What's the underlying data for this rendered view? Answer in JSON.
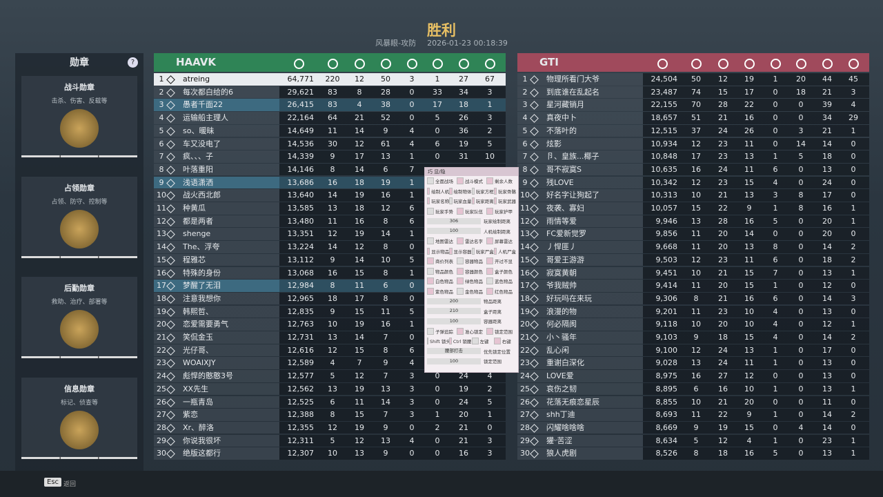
{
  "header": {
    "title": "胜利",
    "subtitle": "风暴眼-攻防",
    "timestamp": "2026-01-23 00:18:39"
  },
  "medals": {
    "title": "勋章",
    "help": "?",
    "items": [
      {
        "name": "战斗勋章",
        "desc": "击杀、伤害、反载等"
      },
      {
        "name": "占领勋章",
        "desc": "占领、防守、控制等"
      },
      {
        "name": "后勤勋章",
        "desc": "救助、治疗、部署等"
      },
      {
        "name": "信息勋章",
        "desc": "标记、侦查等"
      }
    ]
  },
  "teams": [
    {
      "name": "HAAVK",
      "rows": [
        [
          "1",
          "atreing",
          "64,771",
          "220",
          "12",
          "50",
          "3",
          "1",
          "27",
          "67"
        ],
        [
          "2",
          "每次都白给的6",
          "29,621",
          "83",
          "8",
          "28",
          "0",
          "33",
          "34",
          "3"
        ],
        [
          "3",
          "愚者千面22",
          "26,415",
          "83",
          "4",
          "38",
          "0",
          "17",
          "18",
          "1"
        ],
        [
          "4",
          "运输船主理人",
          "22,164",
          "64",
          "21",
          "52",
          "0",
          "5",
          "26",
          "3"
        ],
        [
          "5",
          "so、暖昧",
          "14,649",
          "11",
          "14",
          "9",
          "4",
          "0",
          "36",
          "2"
        ],
        [
          "6",
          "车又没电了",
          "14,536",
          "30",
          "12",
          "61",
          "4",
          "6",
          "19",
          "5"
        ],
        [
          "7",
          "疯、、、子",
          "14,339",
          "9",
          "17",
          "13",
          "1",
          "0",
          "31",
          "10"
        ],
        [
          "8",
          "叶落重阳",
          "14,146",
          "8",
          "14",
          "6",
          "7",
          null,
          null,
          null
        ],
        [
          "9",
          "浅语潇洒",
          "13,686",
          "16",
          "18",
          "19",
          "1",
          null,
          null,
          null
        ],
        [
          "10",
          "战火西北郎",
          "13,640",
          "14",
          "19",
          "16",
          "1",
          null,
          null,
          null
        ],
        [
          "11",
          "种黄瓜",
          "13,585",
          "13",
          "18",
          "12",
          "6",
          null,
          null,
          null
        ],
        [
          "12",
          "都是两者",
          "13,480",
          "11",
          "16",
          "8",
          "6",
          null,
          null,
          null
        ],
        [
          "13",
          "shenge",
          "13,351",
          "12",
          "19",
          "14",
          "1",
          null,
          null,
          null
        ],
        [
          "14",
          "The、浮夸",
          "13,224",
          "14",
          "12",
          "8",
          "0",
          null,
          null,
          null
        ],
        [
          "15",
          "程雅芯",
          "13,112",
          "9",
          "14",
          "10",
          "5",
          null,
          null,
          null
        ],
        [
          "16",
          "特殊的身份",
          "13,068",
          "16",
          "15",
          "8",
          "1",
          null,
          null,
          null
        ],
        [
          "17",
          "梦醒了无泪",
          "12,984",
          "8",
          "11",
          "6",
          "0",
          null,
          null,
          null
        ],
        [
          "18",
          "注意我想你",
          "12,965",
          "18",
          "17",
          "8",
          "0",
          null,
          null,
          null
        ],
        [
          "19",
          "韩熙哲、",
          "12,835",
          "9",
          "15",
          "11",
          "5",
          null,
          null,
          null
        ],
        [
          "20",
          "恋爱需要勇气",
          "12,763",
          "10",
          "19",
          "16",
          "1",
          null,
          null,
          null
        ],
        [
          "21",
          "笑侃金玉",
          "12,731",
          "13",
          "14",
          "7",
          "0",
          null,
          null,
          null
        ],
        [
          "22",
          "光仔哥、",
          "12,616",
          "12",
          "15",
          "8",
          "6",
          null,
          null,
          null
        ],
        [
          "23",
          "WOAIXJY",
          "12,589",
          "4",
          "7",
          "9",
          "4",
          null,
          null,
          null
        ],
        [
          "24",
          "彪悍的憨憨3号",
          "12,577",
          "5",
          "12",
          "7",
          "3",
          "0",
          "24",
          "4"
        ],
        [
          "25",
          "XX先生",
          "12,562",
          "13",
          "19",
          "13",
          "3",
          "0",
          "19",
          "2"
        ],
        [
          "26",
          "一瓶青岛",
          "12,525",
          "6",
          "11",
          "14",
          "3",
          "0",
          "24",
          "5"
        ],
        [
          "27",
          "紫恋",
          "12,388",
          "8",
          "15",
          "7",
          "3",
          "1",
          "20",
          "1"
        ],
        [
          "28",
          "Xr、醉洛",
          "12,355",
          "12",
          "19",
          "9",
          "0",
          "2",
          "21",
          "0"
        ],
        [
          "29",
          "你说我很坏",
          "12,311",
          "5",
          "12",
          "13",
          "4",
          "0",
          "21",
          "3"
        ],
        [
          "30",
          "绝版这都行",
          "12,307",
          "10",
          "13",
          "9",
          "0",
          "0",
          "16",
          "3"
        ]
      ]
    },
    {
      "name": "GTI",
      "rows": [
        [
          "1",
          "物理所看门大爷",
          "24,504",
          "50",
          "12",
          "19",
          "1",
          "20",
          "44",
          "45"
        ],
        [
          "2",
          "到底谁在乱起名",
          "23,487",
          "74",
          "15",
          "17",
          "0",
          "18",
          "21",
          "3"
        ],
        [
          "3",
          "星河藏销月",
          "22,155",
          "70",
          "28",
          "22",
          "0",
          "0",
          "39",
          "4"
        ],
        [
          "4",
          "真夜中卜",
          "18,657",
          "51",
          "21",
          "16",
          "0",
          "0",
          "34",
          "29"
        ],
        [
          "5",
          "不落叶的",
          "12,515",
          "37",
          "24",
          "26",
          "0",
          "3",
          "21",
          "1"
        ],
        [
          "6",
          "炫影",
          "10,934",
          "12",
          "23",
          "11",
          "0",
          "14",
          "14",
          "0"
        ],
        [
          "7",
          "卪、皇族...椰子",
          "10,848",
          "17",
          "23",
          "13",
          "1",
          "5",
          "18",
          "0"
        ],
        [
          "8",
          "哥不寂寞S",
          "10,635",
          "16",
          "24",
          "11",
          "6",
          "0",
          "13",
          "0"
        ],
        [
          "9",
          "残LOVE",
          "10,342",
          "12",
          "23",
          "15",
          "4",
          "0",
          "24",
          "0"
        ],
        [
          "10",
          "好名字让狗起了",
          "10,313",
          "10",
          "21",
          "13",
          "3",
          "8",
          "17",
          "0"
        ],
        [
          "11",
          "夜袭、寡妇",
          "10,057",
          "15",
          "22",
          "9",
          "1",
          "8",
          "16",
          "1"
        ],
        [
          "12",
          "雨情等爱",
          "9,946",
          "13",
          "28",
          "16",
          "5",
          "0",
          "20",
          "1"
        ],
        [
          "13",
          "FC爱新觉罗",
          "9,856",
          "11",
          "20",
          "14",
          "0",
          "0",
          "20",
          "0"
        ],
        [
          "14",
          "丿悍匪丿",
          "9,668",
          "11",
          "20",
          "13",
          "8",
          "0",
          "14",
          "2"
        ],
        [
          "15",
          "哥爱王游游",
          "9,503",
          "12",
          "23",
          "11",
          "6",
          "0",
          "18",
          "2"
        ],
        [
          "16",
          "寂寞黄朝",
          "9,451",
          "10",
          "21",
          "15",
          "7",
          "0",
          "13",
          "1"
        ],
        [
          "17",
          "爷我贼帅",
          "9,414",
          "11",
          "20",
          "15",
          "1",
          "0",
          "12",
          "0"
        ],
        [
          "18",
          "好玩吗在来玩",
          "9,306",
          "8",
          "21",
          "16",
          "6",
          "0",
          "14",
          "3"
        ],
        [
          "19",
          "浪漫的物",
          "9,201",
          "11",
          "23",
          "10",
          "4",
          "0",
          "13",
          "0"
        ],
        [
          "20",
          "何必隔阂",
          "9,118",
          "10",
          "20",
          "10",
          "4",
          "0",
          "12",
          "1"
        ],
        [
          "21",
          "小丶骚年",
          "9,103",
          "9",
          "18",
          "15",
          "4",
          "0",
          "14",
          "2"
        ],
        [
          "22",
          "乱心闲",
          "9,100",
          "12",
          "24",
          "13",
          "1",
          "0",
          "17",
          "0"
        ],
        [
          "23",
          "重谢白深化",
          "9,028",
          "13",
          "24",
          "11",
          "1",
          "0",
          "13",
          "0"
        ],
        [
          "24",
          "LOVE爱",
          "8,975",
          "16",
          "27",
          "12",
          "0",
          "0",
          "13",
          "0"
        ],
        [
          "25",
          "哀伤之韧",
          "8,895",
          "6",
          "16",
          "10",
          "1",
          "0",
          "13",
          "1"
        ],
        [
          "26",
          "花落无痕恋星辰",
          "8,855",
          "10",
          "21",
          "20",
          "0",
          "0",
          "11",
          "0"
        ],
        [
          "27",
          "shh丁迪",
          "8,693",
          "11",
          "22",
          "9",
          "1",
          "0",
          "14",
          "2"
        ],
        [
          "28",
          "闪耀啥啥啥",
          "8,669",
          "9",
          "19",
          "15",
          "0",
          "4",
          "14",
          "0"
        ],
        [
          "29",
          "獾ᵕ苦涩",
          "8,634",
          "5",
          "12",
          "4",
          "1",
          "0",
          "23",
          "1"
        ],
        [
          "30",
          "狼人虎剧",
          "8,526",
          "8",
          "18",
          "16",
          "5",
          "0",
          "13",
          "1"
        ]
      ]
    }
  ],
  "overlay": {
    "title": "巧 显/隐",
    "rows": [
      [
        "全面战场",
        "战斗模式",
        "剩余人数"
      ],
      [
        "绘制人机",
        "绘制物体",
        "玩家方框",
        "玩家骨骼"
      ],
      [
        "玩家名称",
        "玩家血量",
        "玩家距离",
        "玩家武器"
      ],
      [
        "玩家手势",
        "玩家队伍",
        "玩家护甲"
      ],
      {
        "value": "306",
        "label": "玩家绘制距离"
      },
      {
        "value": "100",
        "label": "人机绘制距离"
      },
      [
        "地图雷达",
        "雷达名字",
        "屏幕雷达"
      ],
      [
        "显示物品",
        "显示容器",
        "玩家尸盒",
        "人机尸盒"
      ],
      [
        "商价列表",
        "容器物品",
        "开过不显"
      ],
      [
        "物品颜色",
        "容器颜色",
        "盒子颜色"
      ],
      [
        "白色物品",
        "绿色物品",
        "蓝色物品"
      ],
      [
        "紫色物品",
        "金色物品",
        "红色物品"
      ],
      {
        "value": "200",
        "label": "物品距离"
      },
      {
        "value": "210",
        "label": "盒子距离"
      },
      {
        "value": "100",
        "label": "容器距离"
      },
      [
        "子弹追踪",
        "准心锁定",
        "锁定范围"
      ],
      [
        "Shift 锁头",
        "Ctrl 锁腰",
        "左键",
        "右键"
      ],
      {
        "value": "腰部打击",
        "label": "优先锁定位置"
      },
      {
        "value": "100",
        "label": "锁定范围"
      }
    ]
  },
  "footer": {
    "key": "Esc",
    "label": "返回"
  }
}
